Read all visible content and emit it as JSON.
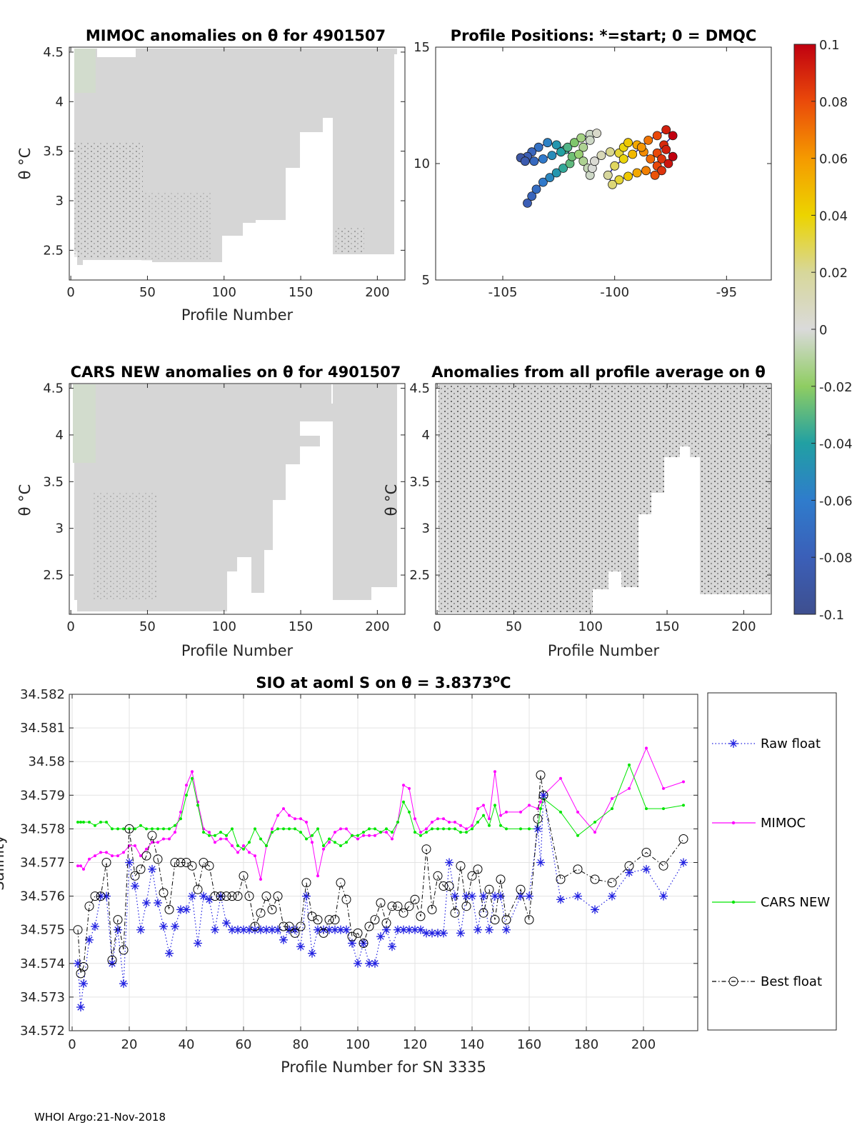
{
  "chart_data": [
    {
      "id": "mimoc",
      "type": "heatmap",
      "title": "MIMOC anomalies on θ  for 4901507",
      "xlabel": "Profile Number",
      "ylabel": "θ °C",
      "xlim": [
        -1,
        218
      ],
      "ylim": [
        2.2,
        4.55
      ],
      "xticks": [
        "0",
        "50",
        "100",
        "150",
        "200"
      ],
      "yticks": [
        "2.5",
        "3",
        "3.5",
        "4",
        "4.5"
      ],
      "fill_color": "#d8d8d8"
    },
    {
      "id": "positions",
      "type": "scatter",
      "title": "Profile Positions: *=start; 0 = DMQC",
      "xlim": [
        -108,
        -93
      ],
      "ylim": [
        5,
        15
      ],
      "xticks": [
        "-105",
        "-100",
        "-95"
      ],
      "yticks": [
        "5",
        "10",
        "15"
      ],
      "track": [
        [
          -103.9,
          8.3
        ],
        [
          -103.7,
          8.6
        ],
        [
          -103.5,
          8.9
        ],
        [
          -103.2,
          9.2
        ],
        [
          -102.9,
          9.4
        ],
        [
          -102.6,
          9.6
        ],
        [
          -102.3,
          9.8
        ],
        [
          -102.0,
          10.0
        ],
        [
          -101.9,
          10.3
        ],
        [
          -102.2,
          10.6
        ],
        [
          -102.6,
          10.8
        ],
        [
          -103.0,
          10.9
        ],
        [
          -103.4,
          10.7
        ],
        [
          -103.7,
          10.5
        ],
        [
          -103.9,
          10.3
        ],
        [
          -104.2,
          10.25
        ],
        [
          -104.0,
          10.1
        ],
        [
          -103.6,
          10.1
        ],
        [
          -103.2,
          10.2
        ],
        [
          -102.8,
          10.35
        ],
        [
          -102.4,
          10.5
        ],
        [
          -102.1,
          10.7
        ],
        [
          -101.8,
          10.9
        ],
        [
          -101.5,
          11.1
        ],
        [
          -101.1,
          11.25
        ],
        [
          -100.8,
          11.3
        ],
        [
          -101.1,
          11.0
        ],
        [
          -101.4,
          10.7
        ],
        [
          -101.6,
          10.4
        ],
        [
          -101.4,
          10.1
        ],
        [
          -101.2,
          9.8
        ],
        [
          -101.1,
          9.5
        ],
        [
          -101.0,
          9.8
        ],
        [
          -100.9,
          10.1
        ],
        [
          -100.6,
          10.35
        ],
        [
          -100.2,
          10.5
        ],
        [
          -99.8,
          10.45
        ],
        [
          -99.6,
          10.7
        ],
        [
          -99.4,
          10.9
        ],
        [
          -99.0,
          10.8
        ],
        [
          -98.7,
          10.5
        ],
        [
          -98.4,
          10.2
        ],
        [
          -98.1,
          9.9
        ],
        [
          -97.9,
          9.7
        ],
        [
          -98.2,
          9.5
        ],
        [
          -98.6,
          9.7
        ],
        [
          -99.0,
          9.6
        ],
        [
          -99.4,
          9.45
        ],
        [
          -99.8,
          9.3
        ],
        [
          -100.1,
          9.1
        ],
        [
          -100.3,
          9.5
        ],
        [
          -100.0,
          9.9
        ],
        [
          -99.6,
          10.2
        ],
        [
          -99.2,
          10.4
        ],
        [
          -98.8,
          10.7
        ],
        [
          -98.5,
          11.0
        ],
        [
          -98.1,
          11.2
        ],
        [
          -97.7,
          11.45
        ],
        [
          -97.4,
          11.2
        ],
        [
          -97.8,
          10.8
        ],
        [
          -98.1,
          10.45
        ],
        [
          -97.9,
          10.2
        ],
        [
          -97.6,
          10.0
        ],
        [
          -97.4,
          10.3
        ],
        [
          -97.7,
          10.6
        ]
      ],
      "color_scale": {
        "min": -0.1,
        "max": 0.1
      },
      "colorbar_ticks": [
        "0.1",
        "0.08",
        "0.06",
        "0.04",
        "0.02",
        "0",
        "-0.02",
        "-0.04",
        "-0.06",
        "-0.08",
        "-0.1"
      ]
    },
    {
      "id": "cars",
      "type": "heatmap",
      "title": "CARS NEW anomalies on θ for 4901507",
      "xlabel": "Profile Number",
      "ylabel": "θ °C",
      "xlim": [
        -1,
        218
      ],
      "ylim": [
        2.08,
        4.55
      ],
      "xticks": [
        "0",
        "50",
        "100",
        "150",
        "200"
      ],
      "yticks": [
        "2.5",
        "3",
        "3.5",
        "4",
        "4.5"
      ]
    },
    {
      "id": "allavg",
      "type": "heatmap",
      "title": "Anomalies from all profile average on θ",
      "xlabel": "Profile Number",
      "ylabel": "θ °C",
      "xlim": [
        -1,
        218
      ],
      "ylim": [
        2.08,
        4.55
      ],
      "xticks": [
        "0",
        "50",
        "100",
        "150",
        "200"
      ],
      "yticks": [
        "2.5",
        "3",
        "3.5",
        "4",
        "4.5"
      ]
    },
    {
      "id": "salinity",
      "type": "line",
      "title": "SIO at aoml S on θ = 3.8373°C",
      "title_main": "SIO at aoml S on θ = 3.8373",
      "title_sup": "o",
      "title_end": "C",
      "xlabel": "Profile Number for SN 3335",
      "ylabel": "Salinity",
      "xlim": [
        -1,
        219
      ],
      "ylim": [
        34.572,
        34.582
      ],
      "xticks": [
        "0",
        "20",
        "40",
        "60",
        "80",
        "100",
        "120",
        "140",
        "160",
        "180",
        "200"
      ],
      "yticks": [
        "34.572",
        "34.573",
        "34.574",
        "34.575",
        "34.576",
        "34.577",
        "34.578",
        "34.579",
        "34.58",
        "34.581",
        "34.582"
      ],
      "grid": true,
      "legend_position": "right",
      "x": [
        2,
        3,
        4,
        6,
        8,
        10,
        12,
        14,
        16,
        18,
        20,
        22,
        24,
        26,
        28,
        30,
        32,
        34,
        36,
        38,
        40,
        42,
        44,
        46,
        48,
        50,
        52,
        54,
        56,
        58,
        60,
        62,
        64,
        66,
        68,
        70,
        72,
        74,
        76,
        78,
        80,
        82,
        84,
        86,
        88,
        90,
        92,
        94,
        96,
        98,
        100,
        102,
        104,
        106,
        108,
        110,
        112,
        114,
        116,
        118,
        120,
        122,
        124,
        126,
        128,
        130,
        132,
        134,
        136,
        138,
        140,
        142,
        144,
        146,
        148,
        150,
        152,
        157,
        160,
        163,
        164,
        165,
        171,
        177,
        183,
        189,
        195,
        201,
        207,
        214
      ],
      "series": [
        {
          "name": "Raw float",
          "color": "#1f1fe0",
          "values": [
            34.574,
            34.5727,
            34.5734,
            34.5747,
            34.5751,
            34.576,
            34.576,
            34.574,
            34.575,
            34.5734,
            34.577,
            34.5763,
            34.575,
            34.5758,
            34.5768,
            34.5758,
            34.5751,
            34.5743,
            34.5751,
            34.5756,
            34.5756,
            34.576,
            34.5746,
            34.576,
            34.5759,
            34.575,
            34.576,
            34.5752,
            34.575,
            34.575,
            34.575,
            34.575,
            34.575,
            34.575,
            34.575,
            34.575,
            34.575,
            34.5747,
            34.575,
            34.575,
            34.5745,
            34.576,
            34.5743,
            34.575,
            34.575,
            34.575,
            34.575,
            34.575,
            34.575,
            34.5746,
            34.574,
            34.5746,
            34.574,
            34.574,
            34.5748,
            34.575,
            34.5745,
            34.575,
            34.575,
            34.575,
            34.575,
            34.575,
            34.5749,
            34.5749,
            34.5749,
            34.5749,
            34.577,
            34.576,
            34.5749,
            34.576,
            34.576,
            34.575,
            34.576,
            34.575,
            34.576,
            34.576,
            34.575,
            34.576,
            34.576,
            34.578,
            34.577,
            34.579,
            34.5759,
            34.576,
            34.5756,
            34.576,
            34.5767,
            34.5768,
            34.576,
            34.577
          ]
        },
        {
          "name": "MIMOC",
          "color": "#ff00ff",
          "values": [
            34.5769,
            34.5769,
            34.5768,
            34.5771,
            34.5772,
            34.5773,
            34.5773,
            34.5772,
            34.5772,
            34.5773,
            34.5775,
            34.5775,
            34.5772,
            34.5774,
            34.5776,
            34.5776,
            34.5777,
            34.5777,
            34.5779,
            34.5785,
            34.5793,
            34.5797,
            34.5788,
            34.578,
            34.5779,
            34.5776,
            34.5777,
            34.5777,
            34.5775,
            34.5773,
            34.5775,
            34.5773,
            34.5772,
            34.5765,
            34.5775,
            34.578,
            34.5784,
            34.5786,
            34.5784,
            34.5783,
            34.5783,
            34.5782,
            34.5776,
            34.5766,
            34.5774,
            34.5776,
            34.5779,
            34.578,
            34.578,
            34.5778,
            34.5777,
            34.5778,
            34.5778,
            34.5778,
            34.5779,
            34.5779,
            34.5777,
            34.5782,
            34.5793,
            34.5792,
            34.5783,
            34.5779,
            34.578,
            34.5782,
            34.5783,
            34.5783,
            34.5782,
            34.5782,
            34.5781,
            34.578,
            34.5781,
            34.5786,
            34.5787,
            34.5783,
            34.5797,
            34.5784,
            34.5785,
            34.5785,
            34.5787,
            34.5786,
            34.5788,
            34.579,
            34.5795,
            34.5785,
            34.5779,
            34.5789,
            34.5792,
            34.5804,
            34.5792,
            34.5794
          ]
        },
        {
          "name": "CARS NEW",
          "color": "#00e600",
          "values": [
            34.5782,
            34.5782,
            34.5782,
            34.5782,
            34.5781,
            34.5782,
            34.5782,
            34.578,
            34.578,
            34.578,
            34.578,
            34.578,
            34.5781,
            34.578,
            34.578,
            34.578,
            34.578,
            34.578,
            34.5781,
            34.5783,
            34.579,
            34.5795,
            34.5787,
            34.5779,
            34.5778,
            34.5778,
            34.5779,
            34.5778,
            34.578,
            34.5775,
            34.5774,
            34.5776,
            34.578,
            34.5777,
            34.5775,
            34.5779,
            34.578,
            34.578,
            34.578,
            34.578,
            34.5779,
            34.5777,
            34.5778,
            34.578,
            34.5775,
            34.5777,
            34.5776,
            34.5775,
            34.5776,
            34.5778,
            34.5778,
            34.5779,
            34.578,
            34.578,
            34.5779,
            34.578,
            34.5779,
            34.5782,
            34.5788,
            34.5785,
            34.5779,
            34.5778,
            34.5779,
            34.578,
            34.578,
            34.578,
            34.578,
            34.578,
            34.5779,
            34.5779,
            34.578,
            34.5782,
            34.5784,
            34.5781,
            34.5787,
            34.5781,
            34.578,
            34.578,
            34.578,
            34.578,
            34.5786,
            34.5789,
            34.5785,
            34.5778,
            34.5782,
            34.5786,
            34.5799,
            34.5786,
            34.5786,
            34.5787
          ]
        },
        {
          "name": "Best float",
          "color": "#000000",
          "values": [
            34.575,
            34.5737,
            34.5739,
            34.5757,
            34.576,
            34.576,
            34.577,
            34.5741,
            34.5753,
            34.5744,
            34.578,
            34.5766,
            34.5768,
            34.5772,
            34.5778,
            34.5771,
            34.5761,
            34.5756,
            34.577,
            34.577,
            34.577,
            34.5769,
            34.5762,
            34.577,
            34.5769,
            34.576,
            34.576,
            34.576,
            34.576,
            34.576,
            34.5766,
            34.576,
            34.5751,
            34.5755,
            34.576,
            34.5756,
            34.576,
            34.5751,
            34.5751,
            34.5749,
            34.5751,
            34.5764,
            34.5754,
            34.5753,
            34.5749,
            34.5753,
            34.5753,
            34.5764,
            34.5759,
            34.5748,
            34.5749,
            34.5746,
            34.5751,
            34.5753,
            34.5758,
            34.5752,
            34.5757,
            34.5757,
            34.5755,
            34.5757,
            34.5759,
            34.5754,
            34.5774,
            34.5756,
            34.5766,
            34.5763,
            34.5763,
            34.5755,
            34.5769,
            34.5757,
            34.5766,
            34.5768,
            34.5755,
            34.5762,
            34.5753,
            34.5765,
            34.5753,
            34.5762,
            34.5753,
            34.5783,
            34.5796,
            34.579,
            34.5765,
            34.5768,
            34.5765,
            34.5764,
            34.5769,
            34.5773,
            34.5769,
            34.5777
          ]
        }
      ]
    }
  ],
  "footer": {
    "text": "WHOI Argo:21-Nov-2018"
  }
}
